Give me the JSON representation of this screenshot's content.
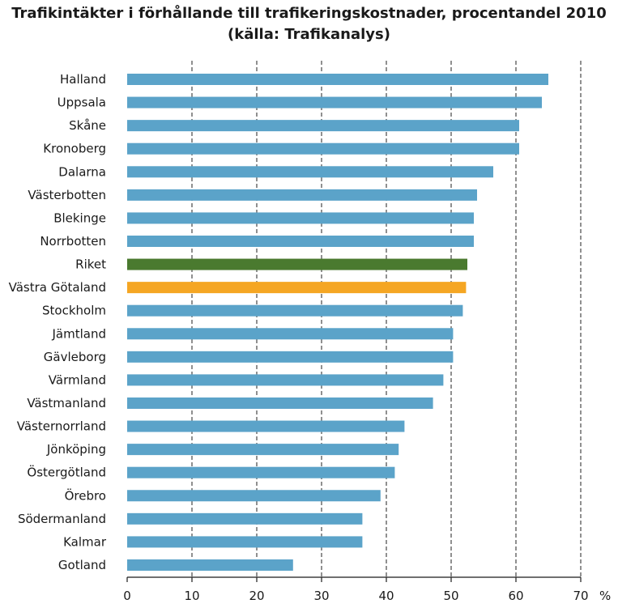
{
  "chart_data": {
    "type": "bar",
    "orientation": "horizontal",
    "title": "Trafikintäkter i förhållande till trafikeringskostnader, procentandel 2010",
    "subtitle": "(källa: Trafikanalys)",
    "xlabel": "",
    "ylabel": "",
    "x_unit": "%",
    "xlim": [
      0,
      70
    ],
    "x_ticks": [
      0,
      10,
      20,
      30,
      40,
      50,
      60,
      70
    ],
    "grid": "vertical-dashed",
    "legend": "none",
    "categories": [
      "Halland",
      "Uppsala",
      "Skåne",
      "Kronoberg",
      "Dalarna",
      "Västerbotten",
      "Blekinge",
      "Norrbotten",
      "Riket",
      "Västra Götaland",
      "Stockholm",
      "Jämtland",
      "Gävleborg",
      "Värmland",
      "Västmanland",
      "Västernorrland",
      "Jönköping",
      "Östergötland",
      "Örebro",
      "Södermanland",
      "Kalmar",
      "Gotland"
    ],
    "values": [
      65,
      64,
      60.5,
      60.5,
      56.5,
      54,
      53.5,
      53.5,
      52.5,
      52.3,
      51.8,
      50.3,
      50.3,
      48.8,
      47.2,
      42.8,
      41.9,
      41.3,
      39.1,
      36.3,
      36.3,
      25.6
    ],
    "colors": {
      "default": "#5ba3c9",
      "Riket": "#4a7a2f",
      "Västra Götaland": "#f5a623"
    }
  }
}
